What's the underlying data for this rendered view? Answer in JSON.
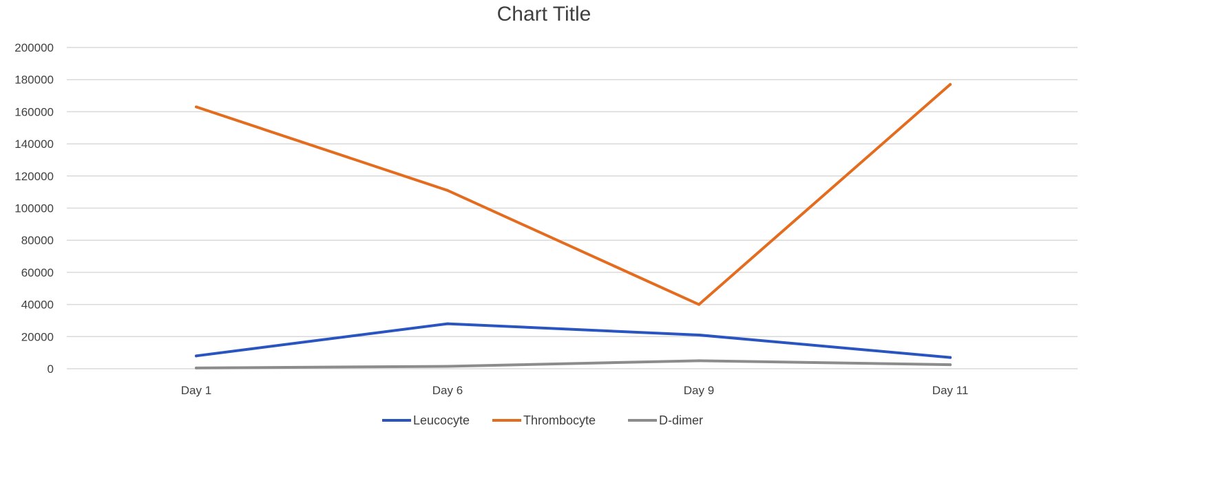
{
  "chart_data": {
    "type": "line",
    "title": "Chart Title",
    "categories": [
      "Day 1",
      "Day 6",
      "Day 9",
      "Day 11"
    ],
    "ylim": [
      0,
      200000
    ],
    "yticks": [
      0,
      20000,
      40000,
      60000,
      80000,
      100000,
      120000,
      140000,
      160000,
      180000,
      200000
    ],
    "grid": true,
    "legend_position": "bottom",
    "series": [
      {
        "name": "Leucocyte",
        "color": "#2a55c0",
        "values": [
          8000,
          28000,
          21000,
          7000
        ]
      },
      {
        "name": "Thrombocyte",
        "color": "#e36c1f",
        "values": [
          163000,
          111000,
          40000,
          177000
        ]
      },
      {
        "name": "D-dimer",
        "color": "#8c8c8c",
        "values": [
          500,
          1500,
          5000,
          2500
        ]
      }
    ]
  }
}
